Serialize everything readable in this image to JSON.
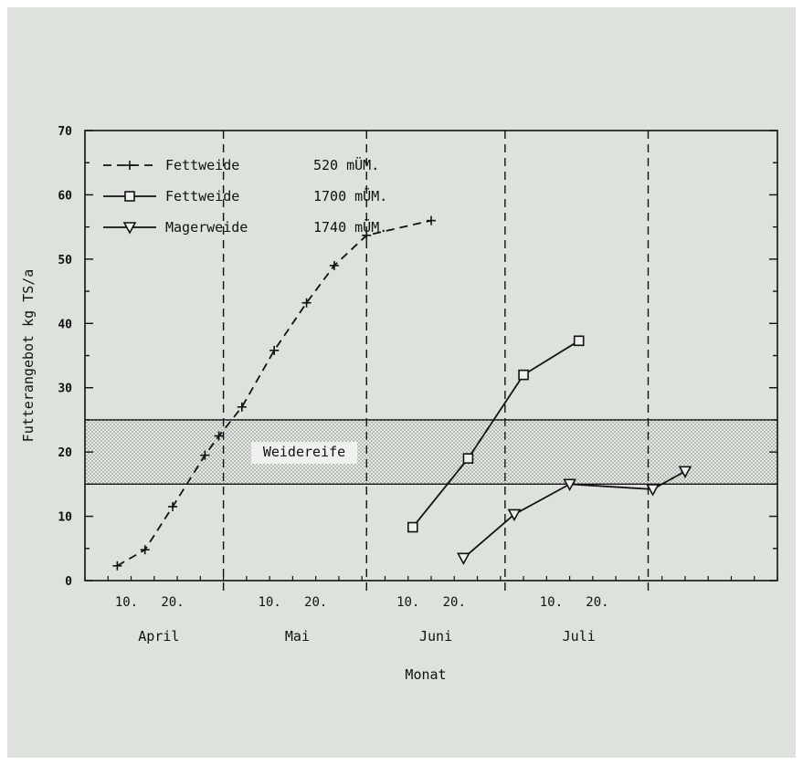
{
  "chart_data": {
    "type": "line",
    "xlabel": "Monat",
    "ylabel": "Futterangebot kg TS/a",
    "ylim": [
      0,
      70
    ],
    "yticks": [
      0,
      10,
      20,
      30,
      40,
      50,
      60,
      70
    ],
    "xlim_days": [
      1,
      151
    ],
    "month_boundaries": [
      31,
      62,
      92,
      123
    ],
    "day_ticks": [
      {
        "day": 10,
        "label": "10."
      },
      {
        "day": 20,
        "label": "20."
      },
      {
        "day": 41,
        "label": "10."
      },
      {
        "day": 51,
        "label": "20."
      },
      {
        "day": 71,
        "label": "10."
      },
      {
        "day": 81,
        "label": "20."
      },
      {
        "day": 102,
        "label": "10."
      },
      {
        "day": 112,
        "label": "20."
      }
    ],
    "months": [
      {
        "label": "April",
        "day": 17
      },
      {
        "label": "Mai",
        "day": 47
      },
      {
        "label": "Juni",
        "day": 77
      },
      {
        "label": "Juli",
        "day": 108
      }
    ],
    "band": {
      "y0": 15,
      "y1": 25,
      "label": "Weidereife"
    },
    "grid": false,
    "legend_position": "top-left",
    "series": [
      {
        "name": "Fettweide",
        "elevation": "520 mÜM.",
        "marker": "plus",
        "dash": true,
        "points": [
          [
            8,
            2.3
          ],
          [
            14,
            4.8
          ],
          [
            20,
            11.5
          ],
          [
            27,
            19.5
          ],
          [
            30,
            22.5
          ],
          [
            35,
            27
          ],
          [
            42,
            35.8
          ],
          [
            49,
            43.2
          ],
          [
            55,
            49
          ],
          [
            62,
            53.7
          ],
          [
            76,
            56
          ]
        ]
      },
      {
        "name": "Fettweide",
        "elevation": "1700 mÜM.",
        "marker": "square",
        "dash": false,
        "points": [
          [
            72,
            8.3
          ],
          [
            84,
            19
          ],
          [
            96,
            32
          ],
          [
            108,
            37.3
          ]
        ]
      },
      {
        "name": "Magerweide",
        "elevation": "1740 mÜM.",
        "marker": "triangle",
        "dash": false,
        "points": [
          [
            83,
            3.5
          ],
          [
            94,
            10.3
          ],
          [
            106,
            15
          ],
          [
            124,
            14.2
          ],
          [
            131,
            17
          ]
        ]
      }
    ]
  }
}
